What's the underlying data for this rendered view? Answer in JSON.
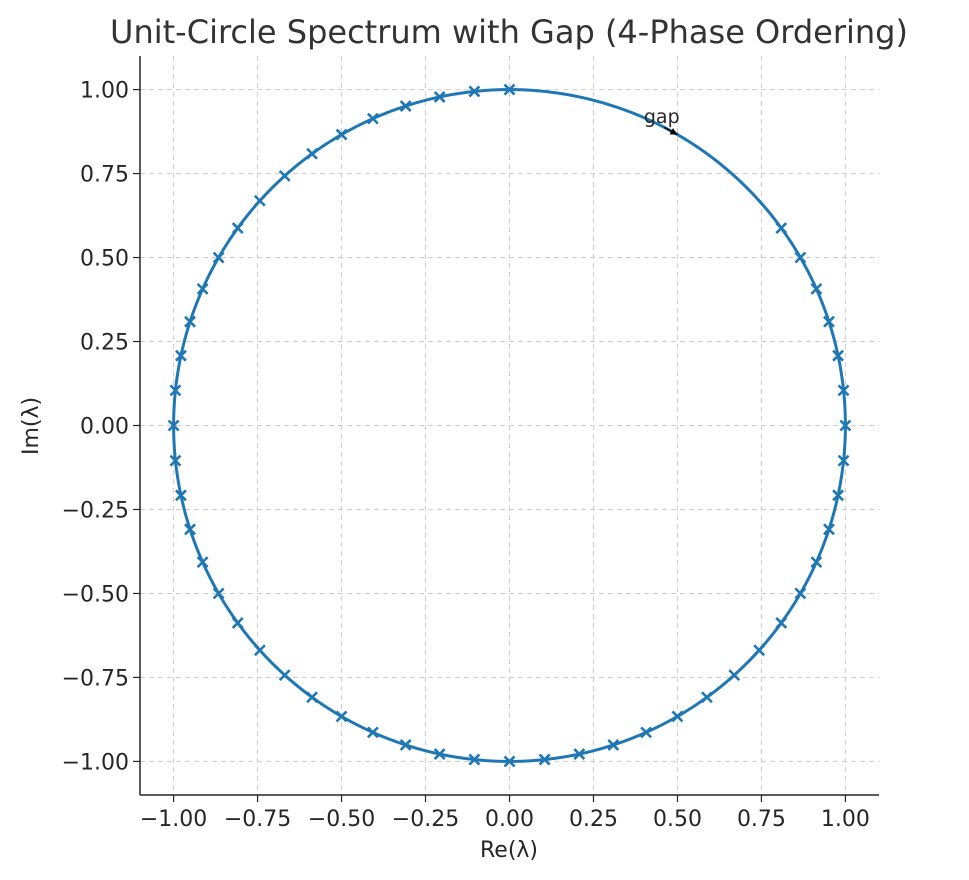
{
  "chart_data": {
    "type": "line",
    "title": "Unit-Circle Spectrum with Gap (4-Phase Ordering)",
    "xlabel": "Re(λ)",
    "ylabel": "Im(λ)",
    "xlim": [
      -1.1,
      1.1
    ],
    "ylim": [
      -1.1,
      1.1
    ],
    "grid": true,
    "equal_aspect": true,
    "xticks": [
      -1.0,
      -0.75,
      -0.5,
      -0.25,
      0.0,
      0.25,
      0.5,
      0.75,
      1.0
    ],
    "yticks": [
      -1.0,
      -0.75,
      -0.5,
      -0.25,
      0.0,
      0.25,
      0.5,
      0.75,
      1.0
    ],
    "xtick_labels": [
      "−1.00",
      "−0.75",
      "−0.50",
      "−0.25",
      "0.00",
      "0.25",
      "0.50",
      "0.75",
      "1.00"
    ],
    "ytick_labels": [
      "−1.00",
      "−0.75",
      "−0.50",
      "−0.25",
      "0.00",
      "0.25",
      "0.50",
      "0.75",
      "1.00"
    ],
    "series": [
      {
        "kind": "line",
        "color": "#1f77b4",
        "description_of_points": "unit circle",
        "angle_start_deg": 0,
        "angle_end_deg": 360
      },
      {
        "kind": "scatter",
        "marker": "x",
        "color": "#1f77b4",
        "angles_deg": [
          -84.0,
          -78.0,
          -72.0,
          -66.0,
          -60.0,
          -54.0,
          -48.0,
          -42.0,
          -36.0,
          -30.0,
          -24.0,
          -18.0,
          -12.0,
          -6.0,
          0.0,
          6.0,
          12.0,
          18.0,
          24.0,
          30.0,
          36.0,
          90.0,
          96.0,
          102.0,
          108.0,
          114.0,
          120.0,
          126.0,
          132.0,
          138.0,
          144.0,
          150.0,
          156.0,
          162.0,
          168.0,
          174.0,
          180.0,
          186.0,
          192.0,
          198.0,
          204.0,
          210.0,
          216.0,
          222.0,
          228.0,
          234.0,
          240.0,
          246.0,
          252.0,
          258.0,
          264.0,
          270.0
        ]
      }
    ],
    "annotations": [
      {
        "text": "gap",
        "text_x": 0.4,
        "text_y": 0.9,
        "arrow_to_x": 0.5,
        "arrow_to_y": 0.866,
        "color": "#000000"
      }
    ]
  }
}
